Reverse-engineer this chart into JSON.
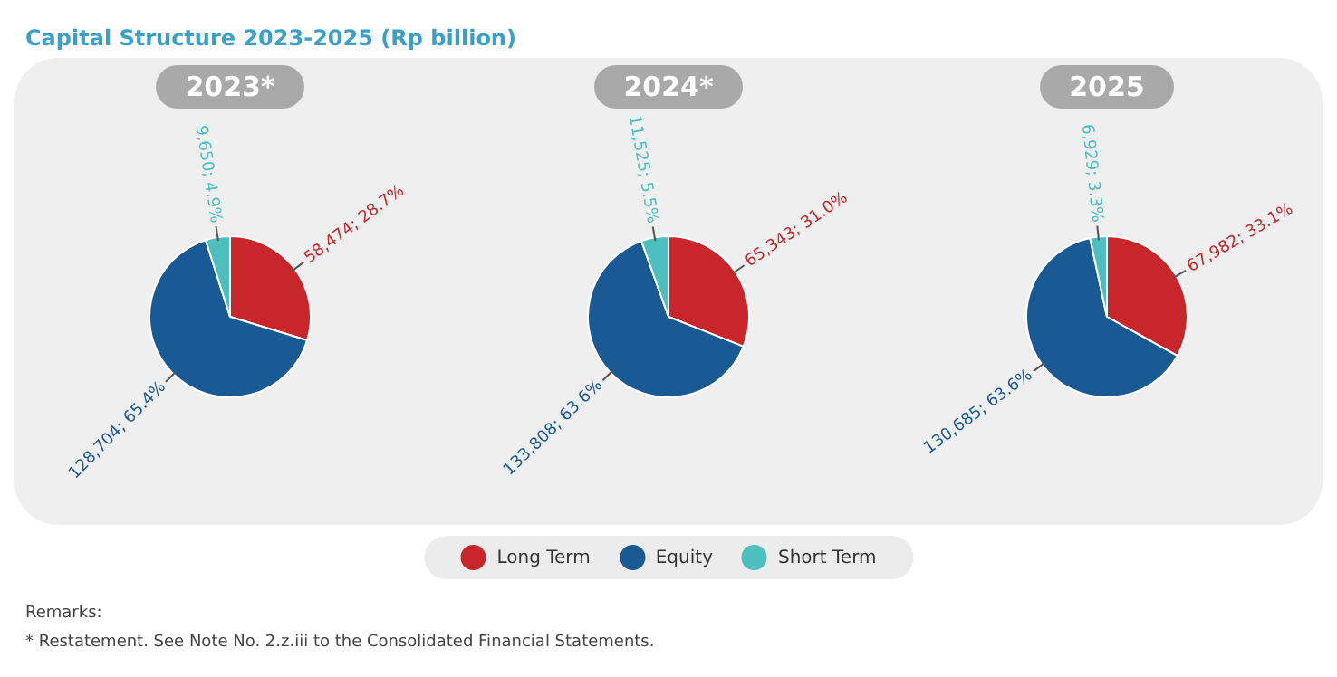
{
  "chart_data": [
    {
      "type": "other",
      "title": "Capital Structure 2023-2025 (Rp billion)",
      "annotations": [
        "Remarks:",
        "*   Restatement. See Note No. 2.z.iii to the Consolidated Financial Statements."
      ]
    },
    {
      "type": "pie",
      "title": "2023*",
      "categories": [
        null,
        null,
        null
      ],
      "values": [
        58474,
        128704,
        9650
      ],
      "colors": [
        "#c8262a",
        "#1a5a94",
        "#4dbfbf"
      ],
      "value_labels": [
        "58,474; 28.7%",
        "128,704; 65.4%",
        "9,650; 4.9%"
      ],
      "legend": false
    },
    {
      "type": "pie",
      "title": "2024*",
      "categories": [
        "Long Term",
        "Equity",
        "Short Term"
      ],
      "values": [
        65343,
        133808,
        11525
      ],
      "colors": [
        "#c8262a",
        "#1a5a94",
        "#4dbfbf"
      ],
      "value_labels": [
        "65,343; 31.0%",
        "133,808; 63.6%",
        "11,525; 5.5%"
      ],
      "legend": "bottom"
    },
    {
      "type": "pie",
      "title": "2025",
      "categories": [
        null,
        null,
        null
      ],
      "values": [
        67982,
        130685,
        6929
      ],
      "colors": [
        "#c8262a",
        "#1a5a94",
        "#4dbfbf"
      ],
      "value_labels": [
        "67,982; 33.1%",
        "130,685; 63.6%",
        "6,929; 3.3%"
      ],
      "legend": false
    }
  ]
}
